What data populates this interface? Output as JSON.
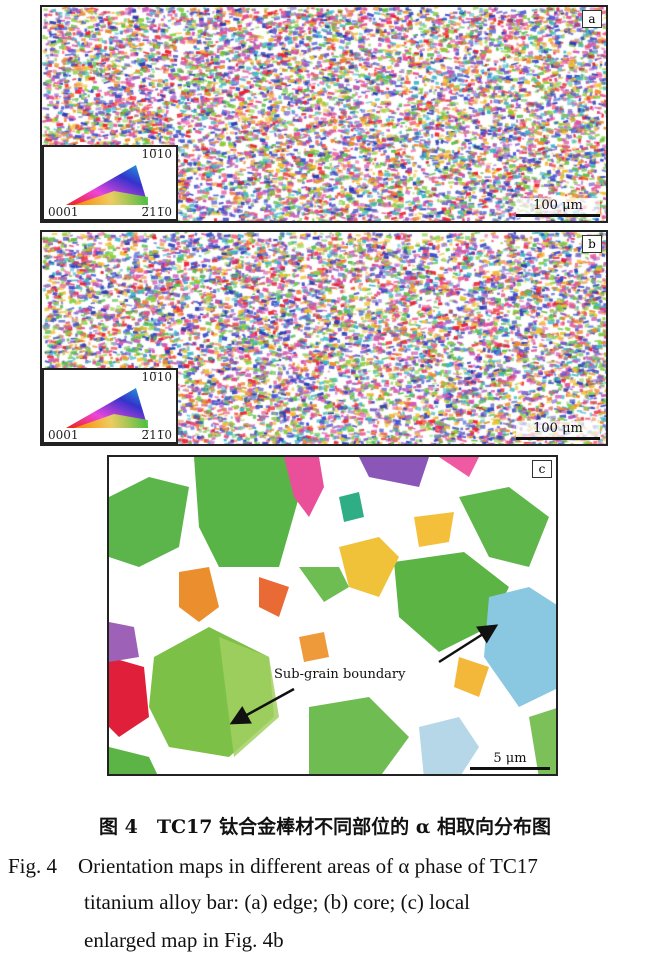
{
  "panels": [
    {
      "label": "a",
      "scale_bar": "100 μm",
      "legend": {
        "top": "10̅10",
        "left": "0001",
        "right": "2̅11̅0"
      }
    },
    {
      "label": "b",
      "scale_bar": "100 μm",
      "legend": {
        "top": "10̅10",
        "left": "0001",
        "right": "2̅11̅0"
      }
    },
    {
      "label": "c",
      "scale_bar": "5 μm",
      "annotation": "Sub-grain boundary"
    }
  ],
  "caption": {
    "cn": "图 4　TC17 钛合金棒材不同部位的 α 相取向分布图",
    "en_line1": "Fig. 4　Orientation maps in different areas of α phase of TC17",
    "en_line2": "titanium alloy bar: (a) edge; (b) core; (c) local",
    "en_line3": "enlarged map in Fig. 4b"
  }
}
